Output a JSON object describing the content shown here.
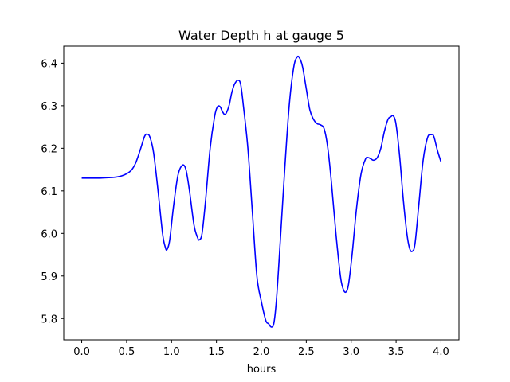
{
  "chart_data": {
    "type": "line",
    "title": "Water Depth h at gauge 5",
    "xlabel": "hours",
    "ylabel": "",
    "xlim": [
      -0.2,
      4.2
    ],
    "ylim": [
      5.75,
      6.44
    ],
    "x_ticks": [
      "0.0",
      "0.5",
      "1.0",
      "1.5",
      "2.0",
      "2.5",
      "3.0",
      "3.5",
      "4.0"
    ],
    "y_ticks": [
      "5.8",
      "5.9",
      "6.0",
      "6.1",
      "6.2",
      "6.3",
      "6.4"
    ],
    "grid": false,
    "series": [
      {
        "color": "#0000ff",
        "points": [
          [
            0.0,
            6.13
          ],
          [
            0.1,
            6.13
          ],
          [
            0.2,
            6.13
          ],
          [
            0.3,
            6.131
          ],
          [
            0.4,
            6.133
          ],
          [
            0.48,
            6.138
          ],
          [
            0.55,
            6.148
          ],
          [
            0.6,
            6.165
          ],
          [
            0.65,
            6.195
          ],
          [
            0.7,
            6.228
          ],
          [
            0.73,
            6.233
          ],
          [
            0.76,
            6.226
          ],
          [
            0.8,
            6.19
          ],
          [
            0.85,
            6.1
          ],
          [
            0.9,
            6.0
          ],
          [
            0.93,
            5.968
          ],
          [
            0.95,
            5.962
          ],
          [
            0.98,
            5.985
          ],
          [
            1.02,
            6.06
          ],
          [
            1.07,
            6.135
          ],
          [
            1.12,
            6.16
          ],
          [
            1.16,
            6.15
          ],
          [
            1.2,
            6.1
          ],
          [
            1.25,
            6.02
          ],
          [
            1.29,
            5.99
          ],
          [
            1.31,
            5.985
          ],
          [
            1.34,
            6.0
          ],
          [
            1.38,
            6.08
          ],
          [
            1.43,
            6.2
          ],
          [
            1.48,
            6.275
          ],
          [
            1.51,
            6.297
          ],
          [
            1.54,
            6.298
          ],
          [
            1.57,
            6.285
          ],
          [
            1.6,
            6.28
          ],
          [
            1.64,
            6.3
          ],
          [
            1.67,
            6.33
          ],
          [
            1.7,
            6.35
          ],
          [
            1.74,
            6.36
          ],
          [
            1.77,
            6.35
          ],
          [
            1.8,
            6.3
          ],
          [
            1.85,
            6.2
          ],
          [
            1.9,
            6.05
          ],
          [
            1.95,
            5.9
          ],
          [
            2.0,
            5.84
          ],
          [
            2.05,
            5.795
          ],
          [
            2.08,
            5.788
          ],
          [
            2.11,
            5.78
          ],
          [
            2.14,
            5.79
          ],
          [
            2.17,
            5.85
          ],
          [
            2.21,
            5.98
          ],
          [
            2.26,
            6.15
          ],
          [
            2.31,
            6.3
          ],
          [
            2.36,
            6.39
          ],
          [
            2.4,
            6.415
          ],
          [
            2.43,
            6.41
          ],
          [
            2.46,
            6.39
          ],
          [
            2.5,
            6.34
          ],
          [
            2.54,
            6.29
          ],
          [
            2.58,
            6.268
          ],
          [
            2.62,
            6.258
          ],
          [
            2.66,
            6.255
          ],
          [
            2.7,
            6.245
          ],
          [
            2.74,
            6.2
          ],
          [
            2.78,
            6.12
          ],
          [
            2.83,
            6.0
          ],
          [
            2.88,
            5.9
          ],
          [
            2.91,
            5.87
          ],
          [
            2.94,
            5.862
          ],
          [
            2.97,
            5.88
          ],
          [
            3.01,
            5.95
          ],
          [
            3.06,
            6.06
          ],
          [
            3.11,
            6.14
          ],
          [
            3.16,
            6.175
          ],
          [
            3.19,
            6.178
          ],
          [
            3.22,
            6.175
          ],
          [
            3.25,
            6.172
          ],
          [
            3.29,
            6.178
          ],
          [
            3.33,
            6.2
          ],
          [
            3.37,
            6.24
          ],
          [
            3.41,
            6.268
          ],
          [
            3.44,
            6.274
          ],
          [
            3.47,
            6.276
          ],
          [
            3.5,
            6.255
          ],
          [
            3.54,
            6.18
          ],
          [
            3.58,
            6.08
          ],
          [
            3.62,
            6.0
          ],
          [
            3.65,
            5.965
          ],
          [
            3.68,
            5.958
          ],
          [
            3.71,
            5.975
          ],
          [
            3.75,
            6.06
          ],
          [
            3.8,
            6.17
          ],
          [
            3.85,
            6.225
          ],
          [
            3.89,
            6.232
          ],
          [
            3.92,
            6.228
          ],
          [
            3.96,
            6.195
          ],
          [
            4.0,
            6.168
          ]
        ]
      }
    ]
  }
}
